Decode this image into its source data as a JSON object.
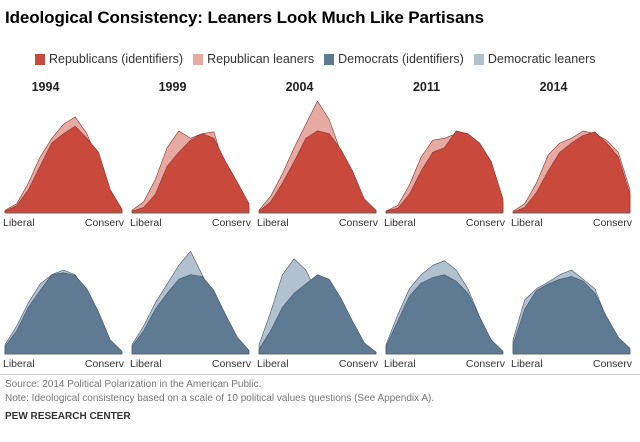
{
  "title": "Ideological Consistency: Leaners Look Much Like Partisans",
  "legend": [
    {
      "label": "Republicans (identifiers)",
      "color": "#c94a3c"
    },
    {
      "label": "Republican leaners",
      "color": "#e7aaa2"
    },
    {
      "label": "Democrats (identifiers)",
      "color": "#5f7b93"
    },
    {
      "label": "Democratic leaners",
      "color": "#b2c1cf"
    }
  ],
  "footer": {
    "source": "Source: 2014 Political Polarization in the American Public.",
    "note": "Note: Ideological consistency based on a scale of 10 political values questions (See Appendix A).",
    "org": "PEW RESEARCH CENTER"
  },
  "chart_data": {
    "type": "area",
    "title": "Ideological Consistency: Leaners Look Much Like Partisans",
    "years": [
      "1994",
      "1999",
      "2004",
      "2011",
      "2014"
    ],
    "x_label_left": "Liberal",
    "x_label_right": "Conserv",
    "x": [
      -10,
      -8,
      -6,
      -4,
      -2,
      0,
      2,
      4,
      6,
      8,
      10
    ],
    "ylim": [
      0,
      12
    ],
    "panels": [
      {
        "year": "1994",
        "party": "republican",
        "series": [
          {
            "name": "Republicans (identifiers)",
            "values": [
              0.2,
              0.8,
              2.5,
              5.0,
              7.5,
              8.5,
              9.3,
              8.0,
              6.5,
              2.5,
              0.4
            ]
          },
          {
            "name": "Republican leaners",
            "values": [
              0.3,
              1.0,
              3.2,
              6.0,
              8.0,
              9.5,
              10.3,
              8.5,
              5.5,
              1.8,
              0.3
            ]
          }
        ]
      },
      {
        "year": "1999",
        "party": "republican",
        "series": [
          {
            "name": "Republicans (identifiers)",
            "values": [
              0.2,
              0.6,
              2.0,
              5.0,
              6.5,
              7.8,
              8.5,
              8.0,
              5.5,
              3.3,
              1.0
            ]
          },
          {
            "name": "Republican leaners",
            "values": [
              0.3,
              1.2,
              3.6,
              7.0,
              8.8,
              8.0,
              8.5,
              8.7,
              4.5,
              2.5,
              0.6
            ]
          }
        ]
      },
      {
        "year": "2004",
        "party": "republican",
        "series": [
          {
            "name": "Republicans (identifiers)",
            "values": [
              0.2,
              1.2,
              3.2,
              5.5,
              8.0,
              8.8,
              8.5,
              6.8,
              4.5,
              1.5,
              0.3
            ]
          },
          {
            "name": "Republican leaners",
            "values": [
              0.3,
              1.8,
              4.2,
              7.0,
              9.5,
              12.0,
              10.0,
              6.5,
              3.5,
              1.0,
              0.2
            ]
          }
        ]
      },
      {
        "year": "2011",
        "party": "republican",
        "series": [
          {
            "name": "Republicans (identifiers)",
            "values": [
              0.2,
              0.5,
              2.0,
              4.5,
              6.5,
              7.0,
              8.8,
              8.5,
              7.5,
              5.5,
              1.5
            ]
          },
          {
            "name": "Republican leaners",
            "values": [
              0.2,
              0.8,
              3.0,
              6.0,
              7.8,
              8.0,
              8.5,
              7.8,
              6.5,
              5.0,
              1.2
            ]
          }
        ]
      },
      {
        "year": "2014",
        "party": "republican",
        "series": [
          {
            "name": "Republicans (identifiers)",
            "values": [
              0.1,
              0.6,
              2.2,
              4.5,
              6.5,
              7.5,
              8.3,
              8.7,
              7.5,
              6.0,
              2.0
            ]
          },
          {
            "name": "Republican leaners",
            "values": [
              0.2,
              1.0,
              3.2,
              6.2,
              7.5,
              8.0,
              8.8,
              8.5,
              7.8,
              6.5,
              2.5
            ]
          }
        ]
      },
      {
        "year": "1994",
        "party": "democrat",
        "series": [
          {
            "name": "Democrats (identifiers)",
            "values": [
              0.8,
              2.5,
              5.0,
              6.8,
              8.5,
              8.7,
              8.4,
              7.0,
              4.5,
              1.5,
              0.3
            ]
          },
          {
            "name": "Democratic leaners",
            "values": [
              1.0,
              3.0,
              5.5,
              7.5,
              8.5,
              9.0,
              8.5,
              6.5,
              4.0,
              1.2,
              0.2
            ]
          }
        ]
      },
      {
        "year": "1999",
        "party": "democrat",
        "series": [
          {
            "name": "Democrats (identifiers)",
            "values": [
              0.8,
              2.5,
              4.8,
              6.5,
              8.0,
              8.5,
              8.3,
              6.8,
              4.2,
              1.8,
              0.4
            ]
          },
          {
            "name": "Democratic leaners",
            "values": [
              1.0,
              3.0,
              5.5,
              7.5,
              9.5,
              11.0,
              8.5,
              6.0,
              3.5,
              1.3,
              0.3
            ]
          }
        ]
      },
      {
        "year": "2004",
        "party": "democrat",
        "series": [
          {
            "name": "Democrats (identifiers)",
            "values": [
              0.5,
              2.5,
              5.0,
              6.5,
              7.5,
              8.5,
              8.0,
              6.0,
              3.5,
              1.2,
              0.2
            ]
          },
          {
            "name": "Democratic leaners",
            "values": [
              1.0,
              4.5,
              8.5,
              10.2,
              9.0,
              6.5,
              6.5,
              4.5,
              2.5,
              0.8,
              0.2
            ]
          }
        ]
      },
      {
        "year": "2011",
        "party": "democrat",
        "series": [
          {
            "name": "Democrats (identifiers)",
            "values": [
              0.8,
              3.5,
              6.2,
              7.6,
              8.2,
              8.5,
              7.8,
              6.5,
              4.0,
              1.5,
              0.3
            ]
          },
          {
            "name": "Democratic leaners",
            "values": [
              1.0,
              4.2,
              7.0,
              8.5,
              9.5,
              10.0,
              9.0,
              7.0,
              4.0,
              1.2,
              0.2
            ]
          }
        ]
      },
      {
        "year": "2014",
        "party": "democrat",
        "series": [
          {
            "name": "Democrats (identifiers)",
            "values": [
              1.0,
              4.8,
              6.8,
              7.5,
              8.0,
              8.3,
              7.8,
              6.5,
              4.0,
              1.8,
              0.6
            ]
          },
          {
            "name": "Democratic leaners",
            "values": [
              1.5,
              5.8,
              7.0,
              7.7,
              8.5,
              9.0,
              8.0,
              7.0,
              3.8,
              1.2,
              0.4
            ]
          }
        ]
      }
    ]
  }
}
